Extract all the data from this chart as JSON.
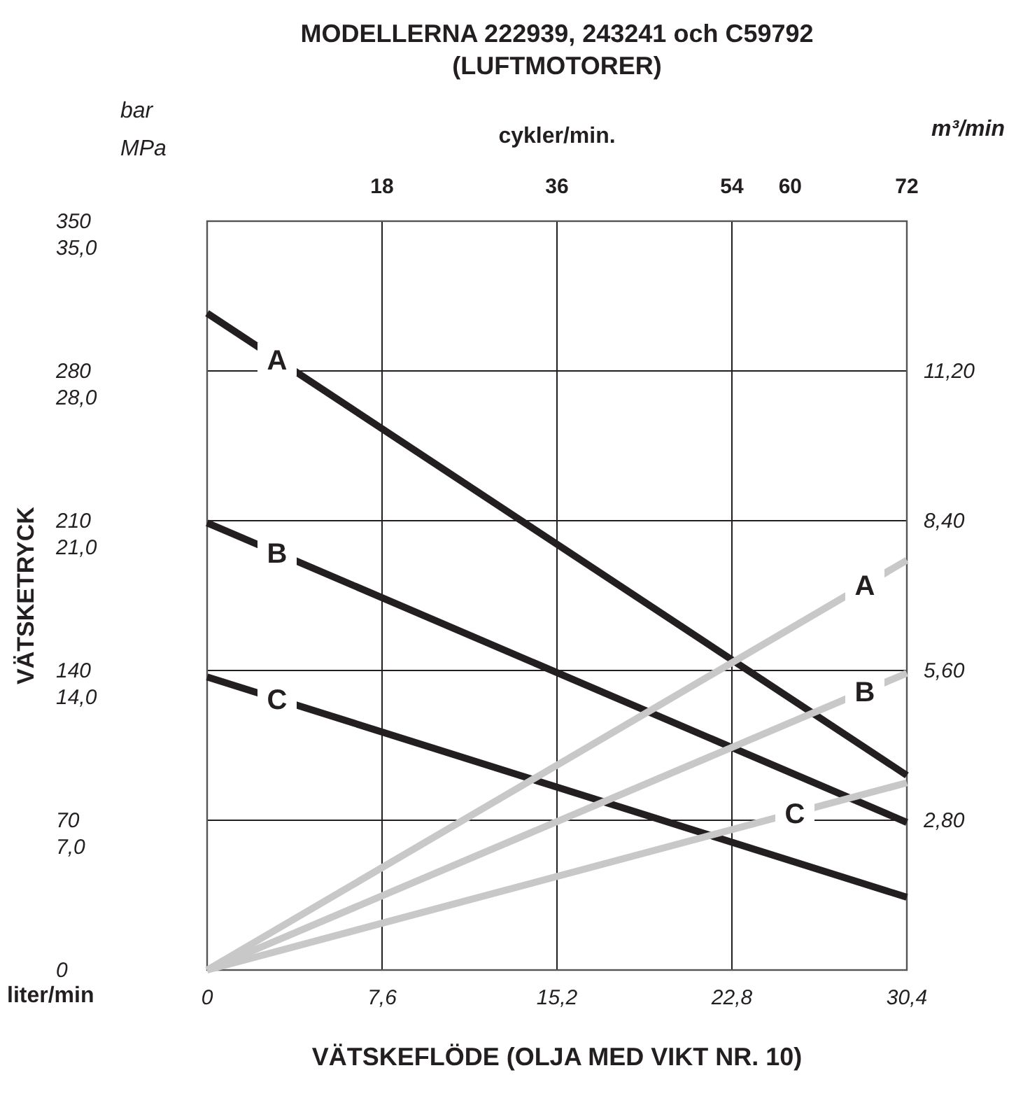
{
  "chart_data": {
    "type": "line",
    "title": "MODELLERNA 222939, 243241 och C59792",
    "subtitle": "(LUFTMOTORER)",
    "xlabel": "VÄTSKEFLÖDE (OLJA MED VIKT NR. 10)",
    "ylabel": "VÄTSKETRYCK",
    "x2label": "cykler/min.",
    "y2label": "m³/min",
    "annotations": [
      "bar",
      "MPa",
      "liter/min"
    ],
    "x": [
      0,
      30.4
    ],
    "series": [
      {
        "name": "A",
        "color": "#231f20",
        "values": [
          307,
          91
        ]
      },
      {
        "name": "B",
        "color": "#231f20",
        "values": [
          209,
          69
        ]
      },
      {
        "name": "C",
        "color": "#231f20",
        "values": [
          137,
          34
        ]
      },
      {
        "name": "A",
        "color": "#c8c8c8",
        "axis": "y2",
        "values": [
          0,
          7.66
        ]
      },
      {
        "name": "B",
        "color": "#c8c8c8",
        "axis": "y2",
        "values": [
          0,
          5.55
        ]
      },
      {
        "name": "C",
        "color": "#c8c8c8",
        "axis": "y2",
        "values": [
          0,
          3.5
        ]
      }
    ],
    "xlim": [
      0,
      30.4
    ],
    "xticks": [
      {
        "value": 0,
        "label": "0"
      },
      {
        "value": 7.6,
        "label": "7,6"
      },
      {
        "value": 15.2,
        "label": "15,2"
      },
      {
        "value": 22.8,
        "label": "22,8"
      },
      {
        "value": 30.4,
        "label": "30,4"
      }
    ],
    "x2lim": [
      0,
      72
    ],
    "x2ticks": [
      18,
      36,
      54,
      60,
      72
    ],
    "ylim": [
      0,
      350
    ],
    "yticks": [
      0,
      70,
      140,
      210,
      280,
      350
    ],
    "y3lim": [
      7,
      35
    ],
    "y3ticks": [
      {
        "value": 7,
        "label": "7,0"
      },
      {
        "value": 14,
        "label": "14,0"
      },
      {
        "value": 21,
        "label": "21,0"
      },
      {
        "value": 28,
        "label": "28,0"
      },
      {
        "value": 35,
        "label": "35,0"
      }
    ],
    "y2lim": [
      0,
      14
    ],
    "y2ticks": [
      {
        "value": 2.8,
        "label": "2,80"
      },
      {
        "value": 5.6,
        "label": "5,60"
      },
      {
        "value": 8.4,
        "label": "8,40"
      },
      {
        "value": 11.2,
        "label": "11,20"
      }
    ],
    "grid": true,
    "line_style": "solid",
    "marker": "none"
  }
}
